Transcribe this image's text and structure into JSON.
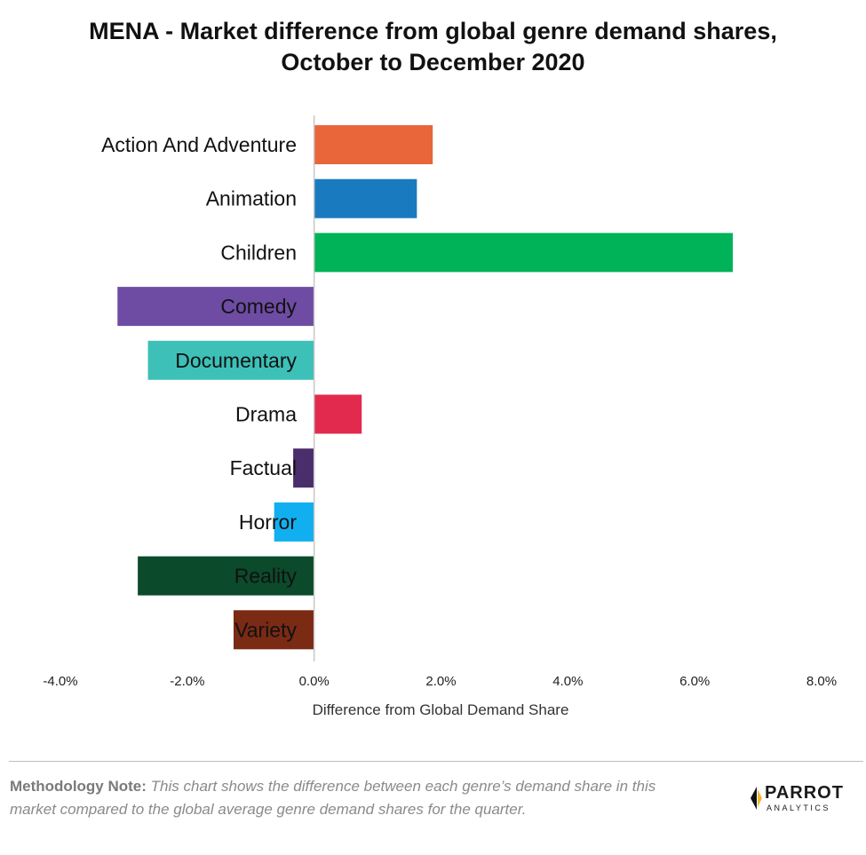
{
  "chart_data": {
    "type": "bar",
    "orientation": "horizontal",
    "title_lines": [
      "MENA - Market difference from global genre demand shares,",
      "October to December 2020"
    ],
    "categories": [
      "Action And Adventure",
      "Animation",
      "Children",
      "Comedy",
      "Documentary",
      "Drama",
      "Factual",
      "Horror",
      "Reality",
      "Variety"
    ],
    "values": [
      1.87,
      1.62,
      6.6,
      -3.1,
      -2.62,
      0.75,
      -0.33,
      -0.63,
      -2.78,
      -1.27
    ],
    "colors": [
      "#e8663a",
      "#1a7abf",
      "#00b258",
      "#6e4ca3",
      "#3dc0b8",
      "#e22a4f",
      "#4a2d6b",
      "#11aff0",
      "#0b4a2b",
      "#7b2a14"
    ],
    "xlabel": "Difference from Global Demand Share",
    "xlim": [
      -4,
      8
    ],
    "xticks": [
      -4,
      -2,
      0,
      2,
      4,
      6,
      8
    ],
    "xtick_labels": [
      "-4.0%",
      "-2.0%",
      "0.0%",
      "2.0%",
      "4.0%",
      "6.0%",
      "8.0%"
    ],
    "grid": false,
    "legend": "none"
  },
  "footer": {
    "note_label": "Methodology Note:",
    "note_text": " This chart shows the difference between each genre’s demand share in this market compared to the global average genre demand shares for the quarter."
  },
  "logo": {
    "word1": "PARROT",
    "word2": "ANALYTICS"
  }
}
